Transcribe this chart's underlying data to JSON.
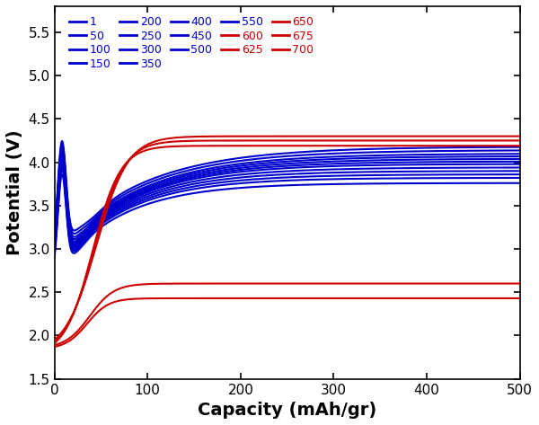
{
  "xlabel": "Capacity (mAh/gr)",
  "ylabel": "Potential (V)",
  "xlim": [
    0,
    500
  ],
  "ylim": [
    1.5,
    5.8
  ],
  "yticks": [
    1.5,
    2.0,
    2.5,
    3.0,
    3.5,
    4.0,
    4.5,
    5.0,
    5.5
  ],
  "xticks": [
    0,
    100,
    200,
    300,
    400,
    500
  ],
  "blue_color": "#0000CC",
  "red_color": "#CC0000",
  "blue_cycles": [
    1,
    50,
    100,
    150,
    200,
    250,
    300,
    350,
    400,
    450,
    500,
    550
  ],
  "red_cycles": [
    600,
    625,
    650,
    675,
    700
  ],
  "legend_cycles": [
    1,
    50,
    100,
    150,
    200,
    250,
    300,
    350,
    400,
    450,
    500,
    550,
    600,
    625,
    650,
    675,
    700
  ],
  "legend_colors": [
    "blue",
    "blue",
    "blue",
    "blue",
    "blue",
    "blue",
    "blue",
    "blue",
    "blue",
    "blue",
    "blue",
    "blue",
    "red",
    "red",
    "red",
    "red",
    "red"
  ],
  "blue_plateau": [
    4.18,
    4.14,
    4.1,
    4.07,
    4.04,
    4.01,
    3.98,
    3.94,
    3.9,
    3.86,
    3.82,
    3.76
  ],
  "blue_min_v": [
    2.98,
    2.94,
    2.9,
    2.87,
    2.84,
    2.82,
    2.8,
    2.78,
    2.76,
    2.74,
    2.72,
    2.7
  ],
  "blue_x_min": [
    38,
    36,
    34,
    33,
    32,
    31,
    30,
    29,
    28,
    27,
    26,
    25
  ],
  "blue_peak_v": [
    4.25,
    4.22,
    4.19,
    4.16,
    4.13,
    4.1,
    4.07,
    4.04,
    4.01,
    3.97,
    3.93,
    3.87
  ],
  "blue_peak_x": [
    8,
    8,
    8,
    8,
    8,
    8,
    8,
    8,
    8,
    8,
    8,
    8
  ],
  "blue_tau": [
    90,
    88,
    86,
    84,
    82,
    80,
    78,
    76,
    74,
    72,
    70,
    68
  ],
  "red_start_v": [
    1.95,
    1.93,
    1.91,
    1.89,
    1.87
  ],
  "red_plateau": [
    4.3,
    4.25,
    4.19,
    2.6,
    2.43
  ],
  "red_x_cross": [
    45,
    43,
    41,
    38,
    35
  ],
  "red_tau": [
    85,
    80,
    75,
    65,
    58
  ]
}
